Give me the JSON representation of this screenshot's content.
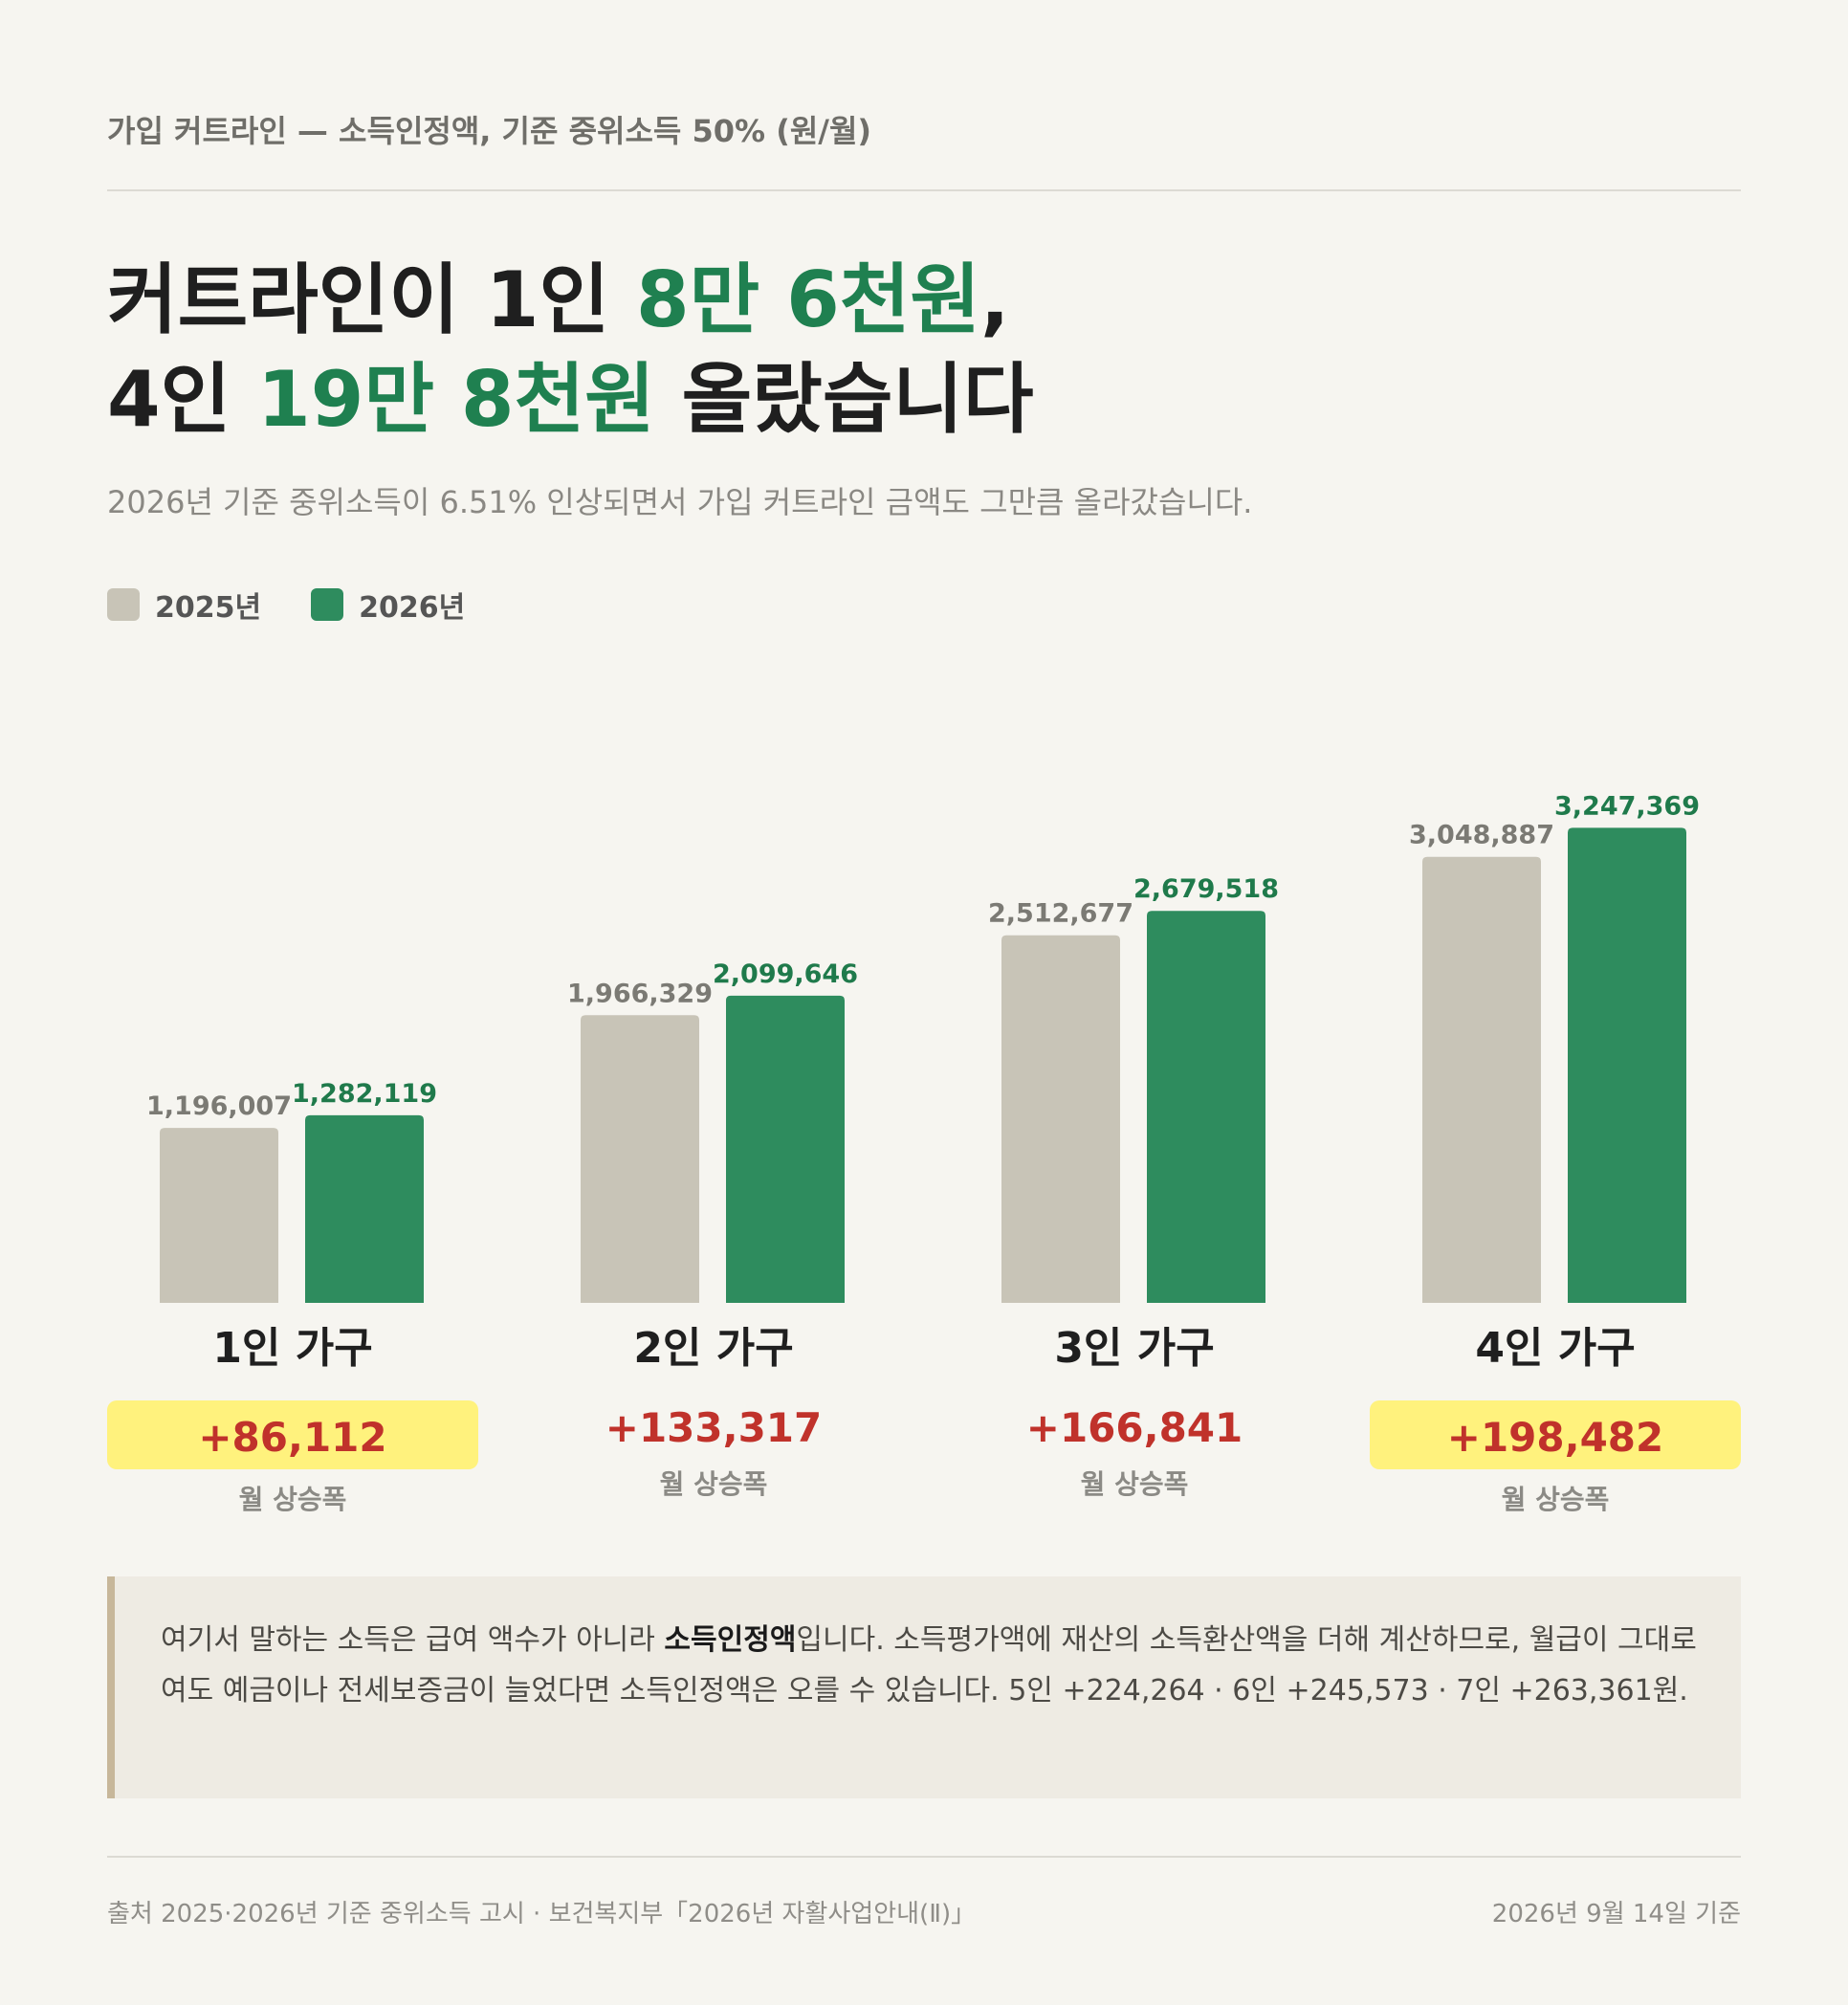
{
  "header": {
    "eyebrow": "가입 커트라인 — 소득인정액, 기준 중위소득 50% (원/월)",
    "headline": {
      "line1_pre": "커트라인이 1인 ",
      "line1_hl": "8만 6천원",
      "line1_post": ",",
      "line2_pre": "4인 ",
      "line2_hl": "19만 8천원",
      "line2_post": " 올랐습니다"
    },
    "subtitle": "2026년 기준 중위소득이 6.51% 인상되면서 가입 커트라인 금액도 그만큼 올라갔습니다."
  },
  "legend": [
    {
      "label": "2025년",
      "color": "#c8c4b7"
    },
    {
      "label": "2026년",
      "color": "#2e8c5e"
    }
  ],
  "chart_data": {
    "type": "bar",
    "categories": [
      "1인 가구",
      "2인 가구",
      "3인 가구",
      "4인 가구"
    ],
    "series": [
      {
        "name": "2025년",
        "values": [
          1196007,
          1966329,
          2512677,
          3048887
        ],
        "color": "#c8c4b7",
        "label_color": "#7b7a74"
      },
      {
        "name": "2026년",
        "values": [
          1282119,
          2099646,
          2679518,
          3247369
        ],
        "color": "#2e8c5e",
        "label_color": "#1f7a4b"
      }
    ],
    "value_labels": [
      [
        "1,196,007",
        "1,966,329",
        "2,512,677",
        "3,048,887"
      ],
      [
        "1,282,119",
        "2,099,646",
        "2,679,518",
        "3,247,369"
      ]
    ],
    "increases": [
      {
        "value": "+86,112",
        "highlight": true
      },
      {
        "value": "+133,317",
        "highlight": false
      },
      {
        "value": "+166,841",
        "highlight": false
      },
      {
        "value": "+198,482",
        "highlight": true
      }
    ],
    "increase_label": "월 상승폭",
    "title": "",
    "ylim": [
      0,
      3400000
    ],
    "grid": false
  },
  "note": {
    "pre": "여기서 말하는 소득은 급여 액수가 아니라 ",
    "bold": "소득인정액",
    "post": "입니다. 소득평가액에 재산의 소득환산액을 더해 계산하므로, 월급이 그대로여도 예금이나 전세보증금이 늘었다면 소득인정액은 오를 수 있습니다. 5인 +224,264 · 6인 +245,573 · 7인 +263,361원."
  },
  "footer": {
    "source": "출처 2025·2026년 기준 중위소득 고시 · 보건복지부「2026년 자활사업안내(Ⅱ)」",
    "date": "2026년 9월 14일 기준"
  }
}
